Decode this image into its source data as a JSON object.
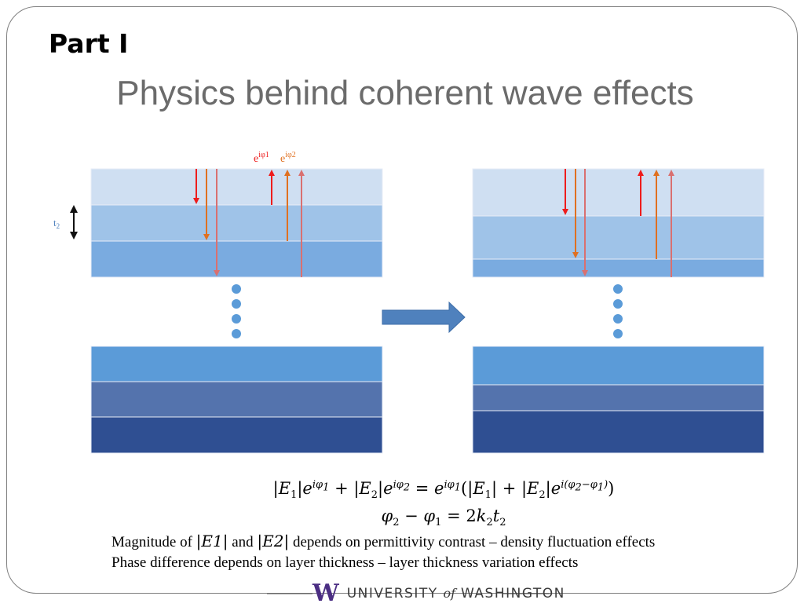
{
  "header": {
    "part": "Part I",
    "title": "Physics behind coherent wave effects"
  },
  "diagram": {
    "left_labels": {
      "phase1_base": "e",
      "phase1_sup": "iφ1",
      "phase2_base": "e",
      "phase2_sup": "iφ2",
      "thickness_base": "t",
      "thickness_sub": "2"
    },
    "colors": {
      "layer_top": "#cfdff2",
      "layer_mid": "#9fc3e8",
      "layer_low": "#7aabe0",
      "layer_deep1": "#5b9bd8",
      "layer_deep2": "#5473ad",
      "layer_deep3": "#2f4f92",
      "ray_red": "#ee1c1c",
      "ray_orange": "#e07020",
      "ray_pink": "#d97070",
      "transition_arrow": "#4f81bd",
      "dots": "#5b9bd8"
    }
  },
  "equations": {
    "line1": "|E1|e^{iφ1} + |E2|e^{iφ2} = e^{iφ1}(|E1| + |E2|e^{i(φ2−φ1)})",
    "line2": "φ2 − φ1 = 2k2t2"
  },
  "captions": {
    "line1_pre": "Magnitude of",
    "line1_e1": "|E1|",
    "line1_and": "and",
    "line1_e2": "|E2|",
    "line1_post": "depends on permittivity contrast – density fluctuation effects",
    "line2": "Phase difference depends on layer thickness – layer thickness variation effects"
  },
  "footer": {
    "logo_letter": "W",
    "university": "UNIVERSITY",
    "of": "of",
    "washington": "WASHINGTON"
  }
}
